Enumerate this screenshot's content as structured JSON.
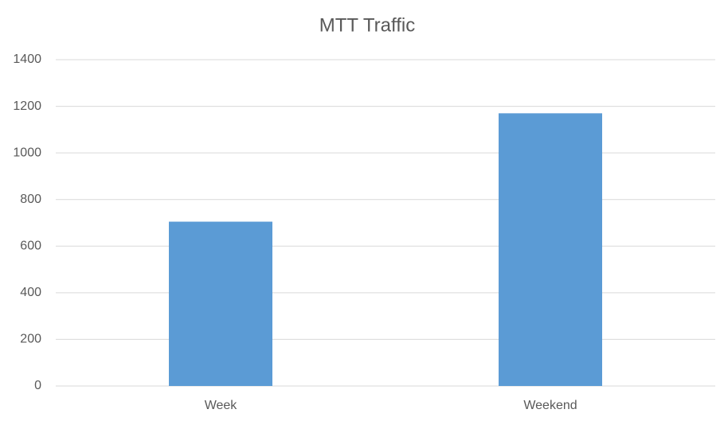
{
  "chart_data": {
    "type": "bar",
    "title": "MTT Traffic",
    "categories": [
      "Week",
      "Weekend"
    ],
    "values": [
      705,
      1170
    ],
    "color": "#5b9bd5",
    "ylim": [
      0,
      1400
    ],
    "yticks": [
      0,
      200,
      400,
      600,
      800,
      1000,
      1200,
      1400
    ],
    "grid": true
  }
}
